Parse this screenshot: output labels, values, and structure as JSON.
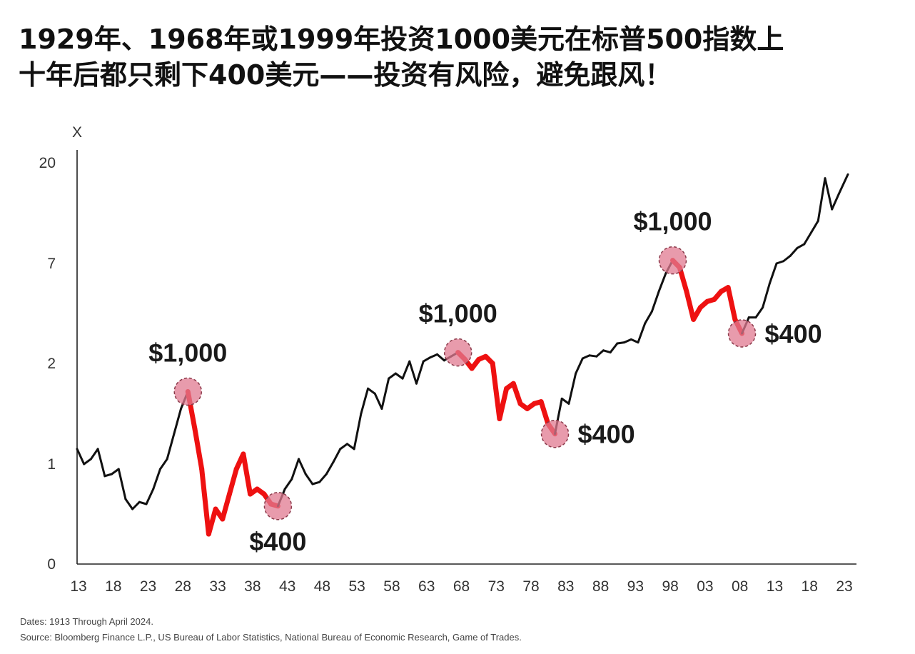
{
  "title": {
    "line1": "1929年、1968年或1999年投资1000美元在标普500指数上",
    "line2": "十年后都只剩下400美元——投资有风险，避免跟风！"
  },
  "notes": {
    "dates": "Dates: 1913 Through April 2024.",
    "source": "Source: Bloomberg Finance L.P., US Bureau of Labor Statistics, National Bureau of Economic Research, Game of Trades."
  },
  "chart_data": {
    "type": "line",
    "ylabel": "X",
    "ylim": [
      0,
      20
    ],
    "y_ticks": [
      "0",
      "1",
      "2",
      "7",
      "20"
    ],
    "x_ticks": [
      "13",
      "18",
      "23",
      "28",
      "33",
      "38",
      "43",
      "48",
      "53",
      "58",
      "63",
      "68",
      "73",
      "78",
      "83",
      "88",
      "93",
      "98",
      "03",
      "08",
      "13",
      "18",
      "23"
    ],
    "xlim": [
      1913,
      2024.3
    ],
    "colors": {
      "line": "#111111",
      "decline": "#ee1111",
      "marker": "#e07a90"
    },
    "series": [
      {
        "values": [
          [
            1913,
            1.15
          ],
          [
            1914,
            1.0
          ],
          [
            1915,
            1.05
          ],
          [
            1916,
            1.15
          ],
          [
            1917,
            0.88
          ],
          [
            1918,
            0.9
          ],
          [
            1919,
            0.95
          ],
          [
            1920,
            0.65
          ],
          [
            1921,
            0.55
          ],
          [
            1922,
            0.62
          ],
          [
            1923,
            0.6
          ],
          [
            1924,
            0.75
          ],
          [
            1925,
            0.95
          ],
          [
            1926,
            1.05
          ],
          [
            1927,
            1.3
          ],
          [
            1928,
            1.55
          ],
          [
            1929,
            1.72
          ],
          [
            1930,
            1.35
          ],
          [
            1931,
            0.95
          ],
          [
            1932,
            0.3
          ],
          [
            1933,
            0.55
          ],
          [
            1934,
            0.45
          ],
          [
            1935,
            0.7
          ],
          [
            1936,
            0.95
          ],
          [
            1937,
            1.1
          ],
          [
            1938,
            0.7
          ],
          [
            1939,
            0.75
          ],
          [
            1940,
            0.7
          ],
          [
            1941,
            0.6
          ],
          [
            1942,
            0.58
          ],
          [
            1943,
            0.75
          ],
          [
            1944,
            0.85
          ],
          [
            1945,
            1.05
          ],
          [
            1946,
            0.9
          ],
          [
            1947,
            0.8
          ],
          [
            1948,
            0.82
          ],
          [
            1949,
            0.9
          ],
          [
            1950,
            1.02
          ],
          [
            1951,
            1.15
          ],
          [
            1952,
            1.2
          ],
          [
            1953,
            1.15
          ],
          [
            1954,
            1.5
          ],
          [
            1955,
            1.75
          ],
          [
            1956,
            1.7
          ],
          [
            1957,
            1.55
          ],
          [
            1958,
            1.85
          ],
          [
            1959,
            1.9
          ],
          [
            1960,
            1.85
          ],
          [
            1961,
            2.1
          ],
          [
            1962,
            1.8
          ],
          [
            1963,
            2.1
          ],
          [
            1964,
            2.3
          ],
          [
            1965,
            2.45
          ],
          [
            1966,
            2.15
          ],
          [
            1967,
            2.35
          ],
          [
            1968,
            2.55
          ],
          [
            1969,
            2.2
          ],
          [
            1970,
            1.95
          ],
          [
            1971,
            2.2
          ],
          [
            1972,
            2.35
          ],
          [
            1973,
            2.0
          ],
          [
            1974,
            1.45
          ],
          [
            1975,
            1.75
          ],
          [
            1976,
            1.8
          ],
          [
            1977,
            1.6
          ],
          [
            1978,
            1.55
          ],
          [
            1979,
            1.6
          ],
          [
            1980,
            1.62
          ],
          [
            1981,
            1.4
          ],
          [
            1982,
            1.3
          ],
          [
            1983,
            1.65
          ],
          [
            1984,
            1.6
          ],
          [
            1985,
            1.9
          ],
          [
            1986,
            2.25
          ],
          [
            1987,
            2.4
          ],
          [
            1988,
            2.35
          ],
          [
            1989,
            2.65
          ],
          [
            1990,
            2.55
          ],
          [
            1991,
            3.0
          ],
          [
            1992,
            3.05
          ],
          [
            1993,
            3.2
          ],
          [
            1994,
            3.05
          ],
          [
            1995,
            4.0
          ],
          [
            1996,
            4.6
          ],
          [
            1997,
            5.6
          ],
          [
            1998,
            6.5
          ],
          [
            1999,
            7.4
          ],
          [
            2000,
            6.8
          ],
          [
            2001,
            5.6
          ],
          [
            2002,
            4.2
          ],
          [
            2003,
            4.8
          ],
          [
            2004,
            5.1
          ],
          [
            2005,
            5.2
          ],
          [
            2006,
            5.6
          ],
          [
            2007,
            5.8
          ],
          [
            2008,
            4.2
          ],
          [
            2009,
            3.5
          ],
          [
            2010,
            4.3
          ],
          [
            2011,
            4.3
          ],
          [
            2012,
            4.8
          ],
          [
            2013,
            6.0
          ],
          [
            2014,
            7.0
          ],
          [
            2015,
            7.3
          ],
          [
            2016,
            8.0
          ],
          [
            2017,
            9.0
          ],
          [
            2018,
            9.5
          ],
          [
            2019,
            11.0
          ],
          [
            2020,
            12.5
          ],
          [
            2021,
            18.0
          ],
          [
            2022,
            14.0
          ],
          [
            2023,
            16.0
          ],
          [
            2024.3,
            18.5
          ]
        ]
      }
    ],
    "declines": [
      {
        "start": 1929,
        "end": 1942
      },
      {
        "start": 1968,
        "end": 1982
      },
      {
        "start": 1999,
        "end": 2009
      }
    ],
    "annotations": [
      {
        "x": 1929,
        "y": 1.72,
        "text": "$1,000",
        "pos": "above"
      },
      {
        "x": 1942,
        "y": 0.58,
        "text": "$400",
        "pos": "below"
      },
      {
        "x": 1968,
        "y": 2.55,
        "text": "$1,000",
        "pos": "above"
      },
      {
        "x": 1982,
        "y": 1.3,
        "text": "$400",
        "pos": "right"
      },
      {
        "x": 1999,
        "y": 7.4,
        "text": "$1,000",
        "pos": "above"
      },
      {
        "x": 2009,
        "y": 3.5,
        "text": "$400",
        "pos": "right"
      }
    ]
  }
}
